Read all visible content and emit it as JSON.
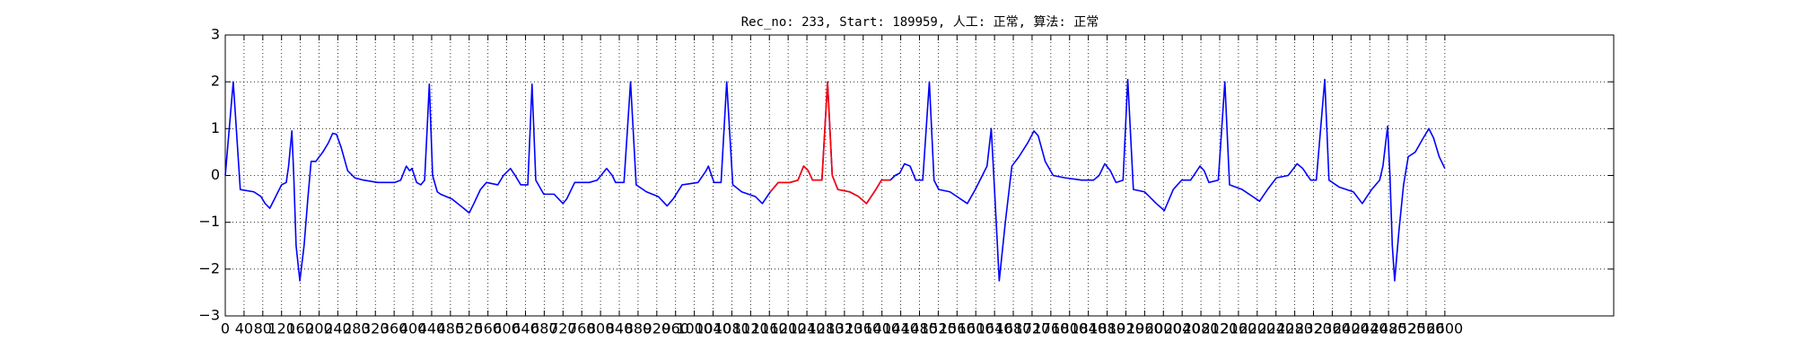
{
  "chart_data": {
    "type": "line",
    "title": "Rec_no: 233, Start: 189959, 人工: 正常, 算法: 正常",
    "x": [
      0,
      17,
      32,
      61,
      76,
      85,
      95,
      105,
      120,
      130,
      135,
      142,
      146,
      151,
      159,
      168,
      176,
      183,
      193,
      208,
      220,
      229,
      237,
      247,
      261,
      276,
      295,
      325,
      361,
      374,
      386,
      393,
      398,
      408,
      417,
      425,
      435,
      442,
      452,
      459,
      483,
      508,
      520,
      530,
      544,
      557,
      581,
      593,
      608,
      618,
      630,
      645,
      654,
      662,
      679,
      701,
      720,
      728,
      745,
      776,
      793,
      813,
      825,
      832,
      850,
      864,
      876,
      898,
      923,
      942,
      955,
      974,
      1008,
      1025,
      1030,
      1042,
      1057,
      1069,
      1082,
      1101,
      1130,
      1145,
      1162,
      1179,
      1204,
      1221,
      1233,
      1243,
      1252,
      1272,
      1284,
      1294,
      1306,
      1331,
      1350,
      1367,
      1387,
      1399,
      1418,
      1428,
      1438,
      1448,
      1460,
      1472,
      1487,
      1501,
      1511,
      1521,
      1545,
      1582,
      1599,
      1614,
      1624,
      1633,
      1641,
      1650,
      1663,
      1677,
      1692,
      1711,
      1724,
      1733,
      1748,
      1765,
      1790,
      1826,
      1851,
      1863,
      1875,
      1887,
      1899,
      1914,
      1924,
      1936,
      1960,
      1985,
      2002,
      2021,
      2039,
      2058,
      2078,
      2087,
      2097,
      2117,
      2131,
      2141,
      2168,
      2205,
      2222,
      2241,
      2266,
      2285,
      2297,
      2314,
      2326,
      2344,
      2353,
      2375,
      2405,
      2424,
      2444,
      2461,
      2468,
      2478,
      2483,
      2488,
      2493,
      2502,
      2512,
      2522,
      2537,
      2554,
      2566,
      2576,
      2588,
      2600
    ],
    "series": [
      {
        "color": "#0000ff",
        "values": [
          0,
          2.0,
          -0.3,
          -0.35,
          -0.45,
          -0.6,
          -0.7,
          -0.5,
          -0.2,
          -0.15,
          0.2,
          0.95,
          0.0,
          -1.5,
          -2.25,
          -1.5,
          -0.5,
          0.3,
          0.3,
          0.5,
          0.7,
          0.9,
          0.88,
          0.6,
          0.1,
          -0.05,
          -0.1,
          -0.15,
          -0.15,
          -0.1,
          0.2,
          0.1,
          0.15,
          -0.15,
          -0.2,
          -0.1,
          1.95,
          0.0,
          -0.35,
          -0.4,
          -0.5,
          -0.7,
          -0.8,
          -0.6,
          -0.3,
          -0.15,
          -0.2,
          0.0,
          0.15,
          0.0,
          -0.2,
          -0.2,
          1.95,
          -0.1,
          -0.4,
          -0.4,
          -0.6,
          -0.5,
          -0.15,
          -0.15,
          -0.1,
          0.15,
          0.0,
          -0.15,
          -0.15,
          2.0,
          -0.2,
          -0.35,
          -0.45,
          -0.65,
          -0.5,
          -0.2,
          -0.15,
          0.1,
          0.2,
          -0.15,
          -0.15,
          2.0,
          -0.2,
          -0.35,
          -0.45,
          -0.6,
          -0.35,
          -0.15,
          -0.15,
          -0.1,
          0.2,
          0.1,
          -0.1,
          -0.1,
          2.0,
          0.0,
          -0.3,
          -0.35,
          -0.45,
          -0.6,
          -0.3,
          -0.1,
          -0.1,
          0.0,
          0.05,
          0.25,
          0.2,
          -0.1,
          -0.1,
          2.0,
          -0.1,
          -0.3,
          -0.35,
          -0.6,
          -0.3,
          0.0,
          0.2,
          1.0,
          -0.5,
          -2.25,
          -1.0,
          0.2,
          0.4,
          0.7,
          0.95,
          0.85,
          0.3,
          0.0,
          -0.05,
          -0.1,
          -0.1,
          0.0,
          0.25,
          0.1,
          -0.15,
          -0.1,
          2.05,
          -0.3,
          -0.35,
          -0.6,
          -0.75,
          -0.3,
          -0.1,
          -0.1,
          0.2,
          0.1,
          -0.15,
          -0.1,
          2.0,
          -0.2,
          -0.3,
          -0.55,
          -0.3,
          -0.05,
          0.0,
          0.25,
          0.15,
          -0.1,
          -0.1,
          2.05,
          -0.1,
          -0.25,
          -0.35,
          -0.6,
          -0.3,
          -0.1,
          0.2,
          1.05,
          0.0,
          -1.5,
          -2.25,
          -1.2,
          -0.2,
          0.4,
          0.5,
          0.8,
          1.0,
          0.8,
          0.4,
          0.15
        ]
      },
      {
        "color": "#ff0000",
        "x": [
          1162,
          1179,
          1204,
          1221,
          1233,
          1243,
          1252,
          1272,
          1284,
          1294,
          1306,
          1331,
          1350,
          1367,
          1387,
          1399,
          1418
        ],
        "values": [
          -0.35,
          -0.15,
          -0.15,
          -0.1,
          0.2,
          0.1,
          -0.1,
          -0.1,
          2.0,
          0.0,
          -0.3,
          -0.35,
          -0.45,
          -0.6,
          -0.3,
          -0.1,
          -0.1
        ]
      }
    ],
    "xlim": [
      0,
      2960
    ],
    "xticks": [
      0,
      40,
      80,
      120,
      160,
      200,
      240,
      280,
      320,
      360,
      400,
      440,
      480,
      520,
      560,
      600,
      640,
      680,
      720,
      760,
      800,
      840,
      880,
      920,
      960,
      1000,
      1040,
      1080,
      1120,
      1160,
      1200,
      1240,
      1280,
      1320,
      1360,
      1400,
      1440,
      1480,
      1520,
      1560,
      1600,
      1640,
      1680,
      1720,
      1760,
      1800,
      1840,
      1880,
      1920,
      1960,
      2000,
      2040,
      2080,
      2120,
      2160,
      2200,
      2240,
      2280,
      2320,
      2360,
      2400,
      2440,
      2480,
      2520,
      2560,
      2600
    ],
    "ylim": [
      -3,
      3
    ],
    "yticks": [
      {
        "value": -3,
        "label": "−3"
      },
      {
        "value": -2,
        "label": "−2"
      },
      {
        "value": -1,
        "label": "−1"
      },
      0,
      1,
      2,
      3
    ],
    "grid": true
  }
}
